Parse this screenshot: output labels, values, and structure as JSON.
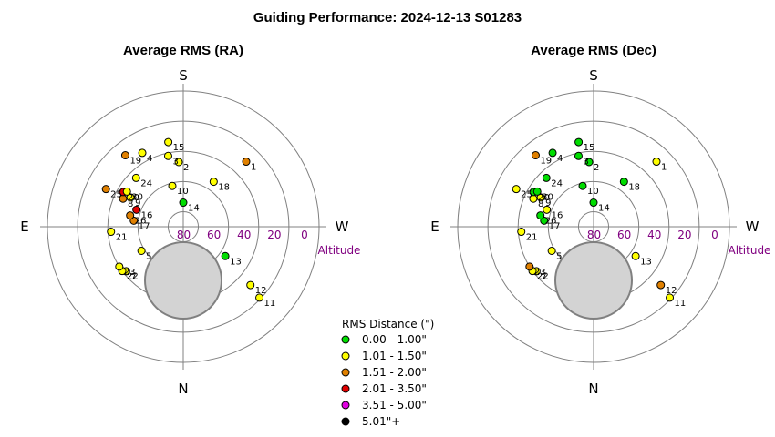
{
  "title": "Guiding Performance: 2024-12-13 S01283",
  "colors": {
    "ring": "#808080",
    "axis": "#808080",
    "altitude_text": "#800080",
    "zone_fill": "#d3d3d3",
    "zone_stroke": "#808080",
    "green": "#00dd00",
    "yellow": "#ffff00",
    "orange": "#e08000",
    "red": "#e00000",
    "magenta": "#e000e0",
    "black": "#000000"
  },
  "legend": {
    "title": "RMS Distance (\")",
    "items": [
      {
        "label": "0.00 - 1.00\"",
        "color": "green"
      },
      {
        "label": "1.01 - 1.50\"",
        "color": "yellow"
      },
      {
        "label": "1.51 - 2.00\"",
        "color": "orange"
      },
      {
        "label": "2.01 - 3.50\"",
        "color": "red"
      },
      {
        "label": "3.51 - 5.00\"",
        "color": "magenta"
      },
      {
        "label": "5.01\"+",
        "color": "black"
      }
    ]
  },
  "chart_data": [
    {
      "type": "scatter",
      "projection": "polar-sky",
      "title": "Average RMS (RA)",
      "compass": {
        "top": "S",
        "bottom": "N",
        "left": "E",
        "right": "W"
      },
      "altitude_label": "Altitude",
      "altitude_ticks": [
        "80",
        "60",
        "40",
        "20",
        "0"
      ],
      "altitude_rings": [
        80,
        60,
        40,
        20,
        0
      ],
      "excluded_altitude_min": 0,
      "excluded_altitude_max": 60,
      "excluded_azimuth_center": 0,
      "points": [
        {
          "label": "1",
          "az": 224,
          "alt": 30,
          "class": "orange"
        },
        {
          "label": "2",
          "az": 176,
          "alt": 47,
          "class": "yellow"
        },
        {
          "label": "3",
          "az": 168,
          "alt": 42,
          "class": "yellow"
        },
        {
          "label": "4",
          "az": 151,
          "alt": 34,
          "class": "yellow"
        },
        {
          "label": "5",
          "az": 60,
          "alt": 58,
          "class": "yellow"
        },
        {
          "label": "7",
          "az": 52,
          "alt": 42,
          "class": "yellow"
        },
        {
          "label": "8",
          "az": 115,
          "alt": 46,
          "class": "orange"
        },
        {
          "label": "9",
          "az": 119,
          "alt": 50,
          "class": "yellow"
        },
        {
          "label": "10",
          "az": 165,
          "alt": 62,
          "class": "yellow"
        },
        {
          "label": "11",
          "az": 313,
          "alt": 21,
          "class": "yellow"
        },
        {
          "label": "12",
          "az": 311,
          "alt": 31,
          "class": "yellow"
        },
        {
          "label": "13",
          "az": 305,
          "alt": 56,
          "class": "green"
        },
        {
          "label": "14",
          "az": 180,
          "alt": 74,
          "class": "green"
        },
        {
          "label": "15",
          "az": 170,
          "alt": 33,
          "class": "yellow"
        },
        {
          "label": "16",
          "az": 110,
          "alt": 57,
          "class": "red"
        },
        {
          "label": "17",
          "az": 97,
          "alt": 57,
          "class": "orange"
        },
        {
          "label": "18",
          "az": 214,
          "alt": 54,
          "class": "yellow"
        },
        {
          "label": "19",
          "az": 141,
          "alt": 29,
          "class": "orange"
        },
        {
          "label": "20",
          "az": 120,
          "alt": 44,
          "class": "red"
        },
        {
          "label": "21",
          "az": 86,
          "alt": 42,
          "class": "yellow"
        },
        {
          "label": "22",
          "az": 54,
          "alt": 40,
          "class": "yellow"
        },
        {
          "label": "23",
          "az": 58,
          "alt": 40,
          "class": "yellow"
        },
        {
          "label": "24",
          "az": 136,
          "alt": 45,
          "class": "yellow"
        },
        {
          "label": "25",
          "az": 116,
          "alt": 33,
          "class": "orange"
        },
        {
          "label": "26",
          "az": 102,
          "alt": 54,
          "class": "orange"
        },
        {
          "label": "30",
          "az": 122,
          "alt": 46,
          "class": "yellow"
        }
      ]
    },
    {
      "type": "scatter",
      "projection": "polar-sky",
      "title": "Average RMS (Dec)",
      "compass": {
        "top": "S",
        "bottom": "N",
        "left": "E",
        "right": "W"
      },
      "altitude_label": "Altitude",
      "altitude_ticks": [
        "80",
        "60",
        "40",
        "20",
        "0"
      ],
      "altitude_rings": [
        80,
        60,
        40,
        20,
        0
      ],
      "excluded_altitude_min": 0,
      "excluded_altitude_max": 60,
      "excluded_azimuth_center": 0,
      "points": [
        {
          "label": "1",
          "az": 224,
          "alt": 30,
          "class": "yellow"
        },
        {
          "label": "2",
          "az": 176,
          "alt": 47,
          "class": "green"
        },
        {
          "label": "3",
          "az": 168,
          "alt": 42,
          "class": "green"
        },
        {
          "label": "4",
          "az": 151,
          "alt": 34,
          "class": "green"
        },
        {
          "label": "5",
          "az": 60,
          "alt": 58,
          "class": "yellow"
        },
        {
          "label": "7",
          "az": 52,
          "alt": 42,
          "class": "yellow"
        },
        {
          "label": "8",
          "az": 115,
          "alt": 46,
          "class": "yellow"
        },
        {
          "label": "9",
          "az": 119,
          "alt": 50,
          "class": "yellow"
        },
        {
          "label": "10",
          "az": 165,
          "alt": 62,
          "class": "green"
        },
        {
          "label": "11",
          "az": 313,
          "alt": 21,
          "class": "yellow"
        },
        {
          "label": "12",
          "az": 311,
          "alt": 31,
          "class": "orange"
        },
        {
          "label": "13",
          "az": 305,
          "alt": 56,
          "class": "yellow"
        },
        {
          "label": "14",
          "az": 180,
          "alt": 74,
          "class": "green"
        },
        {
          "label": "15",
          "az": 170,
          "alt": 33,
          "class": "green"
        },
        {
          "label": "16",
          "az": 110,
          "alt": 57,
          "class": "yellow"
        },
        {
          "label": "17",
          "az": 97,
          "alt": 57,
          "class": "green"
        },
        {
          "label": "18",
          "az": 214,
          "alt": 54,
          "class": "green"
        },
        {
          "label": "19",
          "az": 141,
          "alt": 29,
          "class": "orange"
        },
        {
          "label": "20",
          "az": 120,
          "alt": 44,
          "class": "green"
        },
        {
          "label": "21",
          "az": 86,
          "alt": 42,
          "class": "yellow"
        },
        {
          "label": "22",
          "az": 54,
          "alt": 40,
          "class": "yellow"
        },
        {
          "label": "23",
          "az": 58,
          "alt": 40,
          "class": "orange"
        },
        {
          "label": "24",
          "az": 136,
          "alt": 45,
          "class": "green"
        },
        {
          "label": "25",
          "az": 116,
          "alt": 33,
          "class": "yellow"
        },
        {
          "label": "26",
          "az": 102,
          "alt": 54,
          "class": "green"
        },
        {
          "label": "30",
          "az": 122,
          "alt": 46,
          "class": "green"
        }
      ]
    }
  ]
}
